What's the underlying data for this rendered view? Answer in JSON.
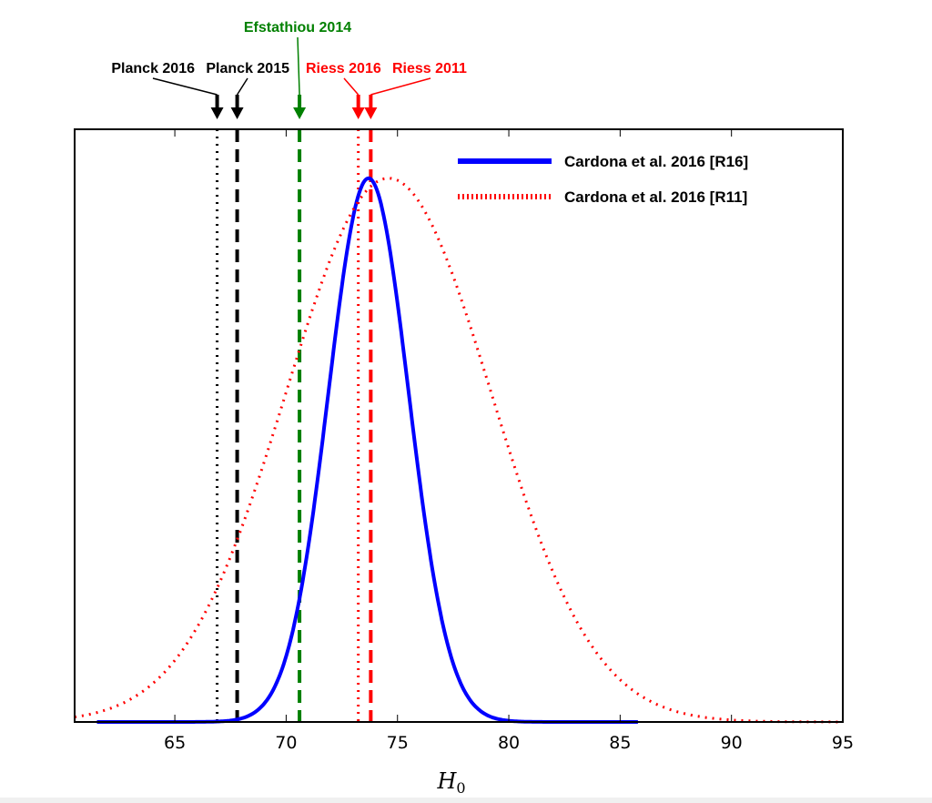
{
  "chart_data": {
    "type": "line",
    "title": "",
    "xlabel": "H",
    "xlabel_sub": "0",
    "ylabel": "",
    "xlim": [
      60.5,
      95
    ],
    "ylim": [
      0,
      1.09
    ],
    "xticks": [
      "65",
      "70",
      "75",
      "80",
      "85",
      "90",
      "95"
    ],
    "xtick_values": [
      65,
      70,
      75,
      80,
      85,
      90,
      95
    ],
    "grid": false,
    "legend_position": "top-right",
    "series": [
      {
        "name": "Cardona et al. 2016 [R16]",
        "style": "solid",
        "color": "#0000ff",
        "distribution": "gaussian",
        "mean": 73.7,
        "sigma": 1.8,
        "x_range": [
          61.5,
          85.8
        ],
        "peak": 1.0
      },
      {
        "name": "Cardona et al. 2016 [R11]",
        "style": "dotted",
        "color": "#ff0000",
        "distribution": "gaussian",
        "mean": 74.6,
        "sigma": 4.6,
        "x_range": [
          60.5,
          95
        ],
        "peak": 1.0
      }
    ],
    "reference_lines": [
      {
        "label": "Planck 2016",
        "x": 66.9,
        "style": "dotted",
        "color": "#000000"
      },
      {
        "label": "Planck 2015",
        "x": 67.8,
        "style": "dashed",
        "color": "#000000"
      },
      {
        "label": "Efstathiou 2014",
        "x": 70.6,
        "style": "dashed",
        "color": "#008000"
      },
      {
        "label": "Riess 2016",
        "x": 73.24,
        "style": "dotted",
        "color": "#ff0000"
      },
      {
        "label": "Riess 2011",
        "x": 73.8,
        "style": "dashed",
        "color": "#ff0000"
      }
    ]
  }
}
